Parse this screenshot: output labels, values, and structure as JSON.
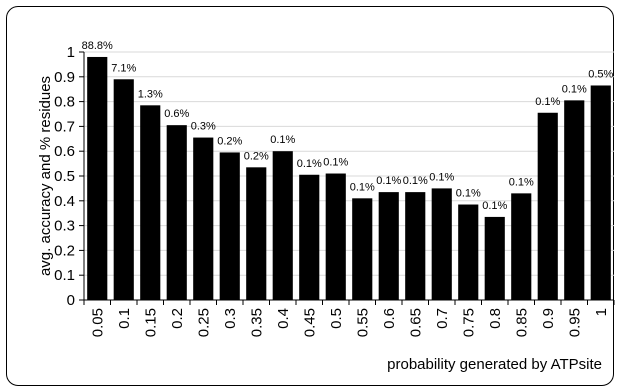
{
  "chart_data": {
    "type": "bar",
    "categories": [
      "0.05",
      "0.1",
      "0.15",
      "0.2",
      "0.25",
      "0.3",
      "0.35",
      "0.4",
      "0.45",
      "0.5",
      "0.55",
      "0.6",
      "0.65",
      "0.7",
      "0.75",
      "0.8",
      "0.85",
      "0.9",
      "0.95",
      "1"
    ],
    "values": [
      0.98,
      0.89,
      0.785,
      0.705,
      0.655,
      0.595,
      0.535,
      0.6,
      0.505,
      0.51,
      0.41,
      0.435,
      0.435,
      0.45,
      0.385,
      0.335,
      0.43,
      0.755,
      0.805,
      0.865
    ],
    "data_labels": [
      "88.8%",
      "7.1%",
      "1.3%",
      "0.6%",
      "0.3%",
      "0.2%",
      "0.2%",
      "0.1%",
      "0.1%",
      "0.1%",
      "0.1%",
      "0.1%",
      "0.1%",
      "0.1%",
      "0.1%",
      "0.1%",
      "0.1%",
      "0.1%",
      "0.1%",
      "0.5%"
    ],
    "y_ticks": [
      "0",
      "0.1",
      "0.2",
      "0.3",
      "0.4",
      "0.5",
      "0.6",
      "0.7",
      "0.8",
      "0.9",
      "1"
    ],
    "ylim": [
      0,
      1
    ],
    "xlabel": "probability generated by ATPsite",
    "ylabel": "avg. accuracy and % residues",
    "grid": "horizontal",
    "bar_color": "#000000",
    "grid_color": "#d9d9d9"
  }
}
